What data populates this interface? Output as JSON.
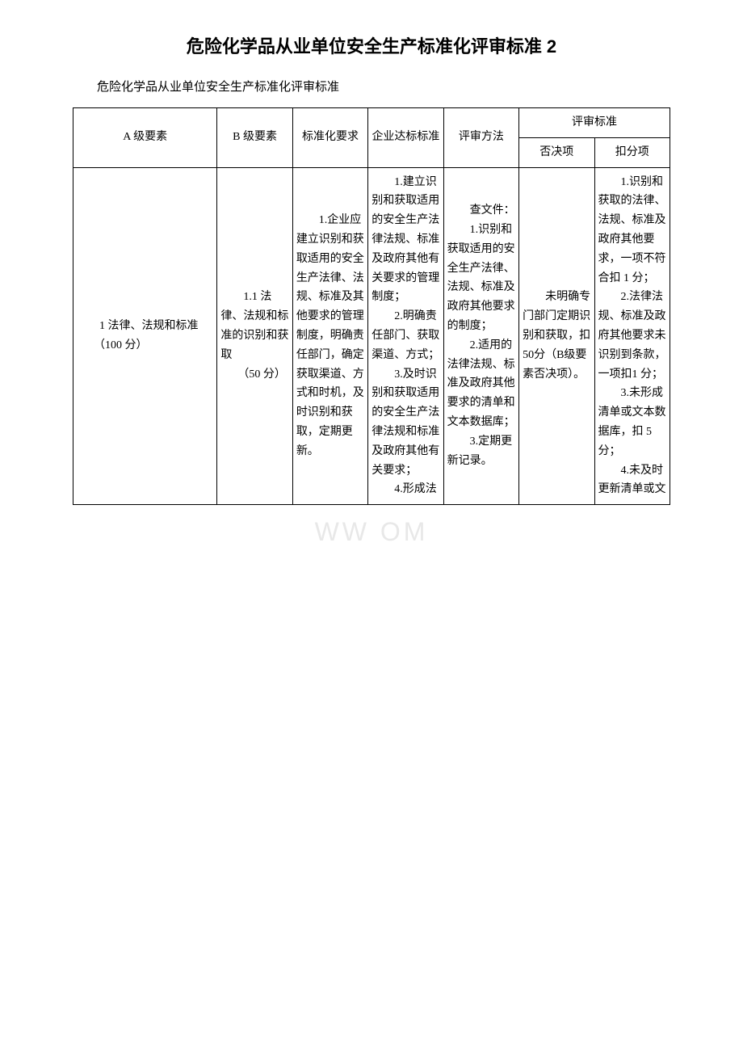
{
  "title": "危险化学品从业单位安全生产标准化评审标准 2",
  "subtitle": "危险化学品从业单位安全生产标准化评审标准",
  "watermark": "WW                        OM",
  "table": {
    "header": {
      "a_element": "A 级要素",
      "b_element": "B 级要素",
      "std_req": "标准化要求",
      "ent_std": "企业达标标准",
      "method": "评审方法",
      "criteria": "评审标准",
      "veto": "否决项",
      "deduct": "扣分项"
    },
    "row1": {
      "a": "　　1 法律、法规和标准\n　　（100 分）",
      "b": "　　1.1 法律、法规和标准的识别和获取\n　　（50 分）",
      "c": "　　1.企业应建立识别和获取适用的安全生产法律、法规、标准及其他要求的管理制度，明确责任部门，确定获取渠道、方式和时机，及时识别和获取，定期更新。",
      "d": "　　1.建立识别和获取适用的安全生产法律法规、标准及政府其他有关要求的管理制度；\n　　2.明确责任部门、获取渠道、方式；\n　　3.及时识别和获取适用的安全生产法律法规和标准及政府其他有关要求；\n　　4.形成法",
      "e": "　　查文件：\n　　1.识别和获取适用的安全生产法律、法规、标准及政府其他要求的制度；\n　　2.适用的法律法规、标准及政府其他要求的清单和文本数据库；\n　　3.定期更新记录。",
      "f": "　　未明确专门部门定期识别和获取，扣 50分（B级要素否决项）。",
      "g": "　　1.识别和获取的法律、法规、标准及政府其他要求，一项不符合扣 1 分；\n　　2.法律法规、标准及政府其他要求未识别到条款，一项扣1 分；\n　　3.未形成清单或文本数据库，扣 5 分；\n　　4.未及时更新清单或文"
    }
  }
}
